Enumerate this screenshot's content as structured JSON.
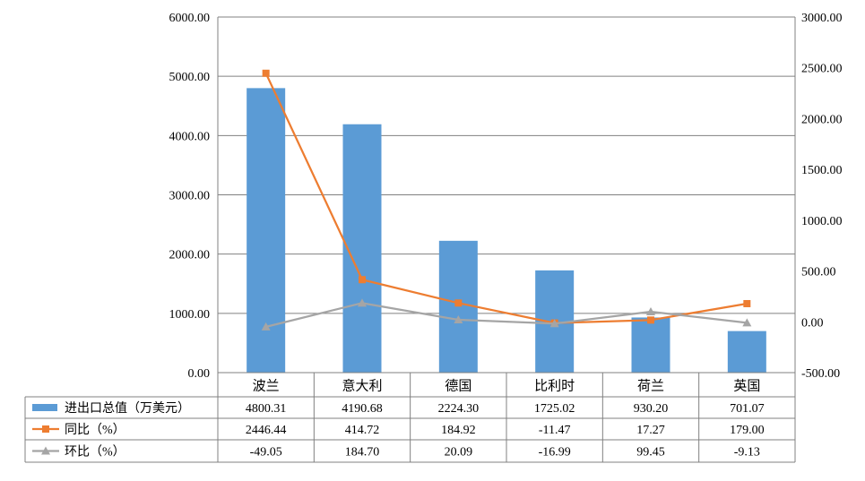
{
  "chart_data": {
    "type": "bar",
    "categories": [
      "波兰",
      "意大利",
      "德国",
      "比利时",
      "荷兰",
      "英国"
    ],
    "series": [
      {
        "name": "进出口总值（万美元）",
        "type": "bar",
        "axis": "left",
        "color": "#5B9BD5",
        "values": [
          4800.31,
          4190.68,
          2224.3,
          1725.02,
          930.2,
          701.07
        ],
        "labels": [
          "4800.31",
          "4190.68",
          "2224.30",
          "1725.02",
          "930.20",
          "701.07"
        ]
      },
      {
        "name": "同比（%）",
        "type": "line",
        "axis": "right",
        "color": "#ED7D31",
        "marker": "square",
        "values": [
          2446.44,
          414.72,
          184.92,
          -11.47,
          17.27,
          179.0
        ],
        "labels": [
          "2446.44",
          "414.72",
          "184.92",
          "-11.47",
          "17.27",
          "179.00"
        ]
      },
      {
        "name": "环比（%）",
        "type": "line",
        "axis": "right",
        "color": "#A5A5A5",
        "marker": "triangle",
        "values": [
          -49.05,
          184.7,
          20.09,
          -16.99,
          99.45,
          -9.13
        ],
        "labels": [
          "-49.05",
          "184.70",
          "20.09",
          "-16.99",
          "99.45",
          "-9.13"
        ]
      }
    ],
    "y_left": {
      "min": 0,
      "max": 6000,
      "step": 1000,
      "ticks": [
        "0.00",
        "1000.00",
        "2000.00",
        "3000.00",
        "4000.00",
        "5000.00",
        "6000.00"
      ]
    },
    "y_right": {
      "min": -500,
      "max": 3000,
      "step": 500,
      "ticks": [
        "-500.00",
        "0.00",
        "500.00",
        "1000.00",
        "1500.00",
        "2000.00",
        "2500.00",
        "3000.00"
      ]
    },
    "grid": true,
    "legend": "data-table-left"
  }
}
